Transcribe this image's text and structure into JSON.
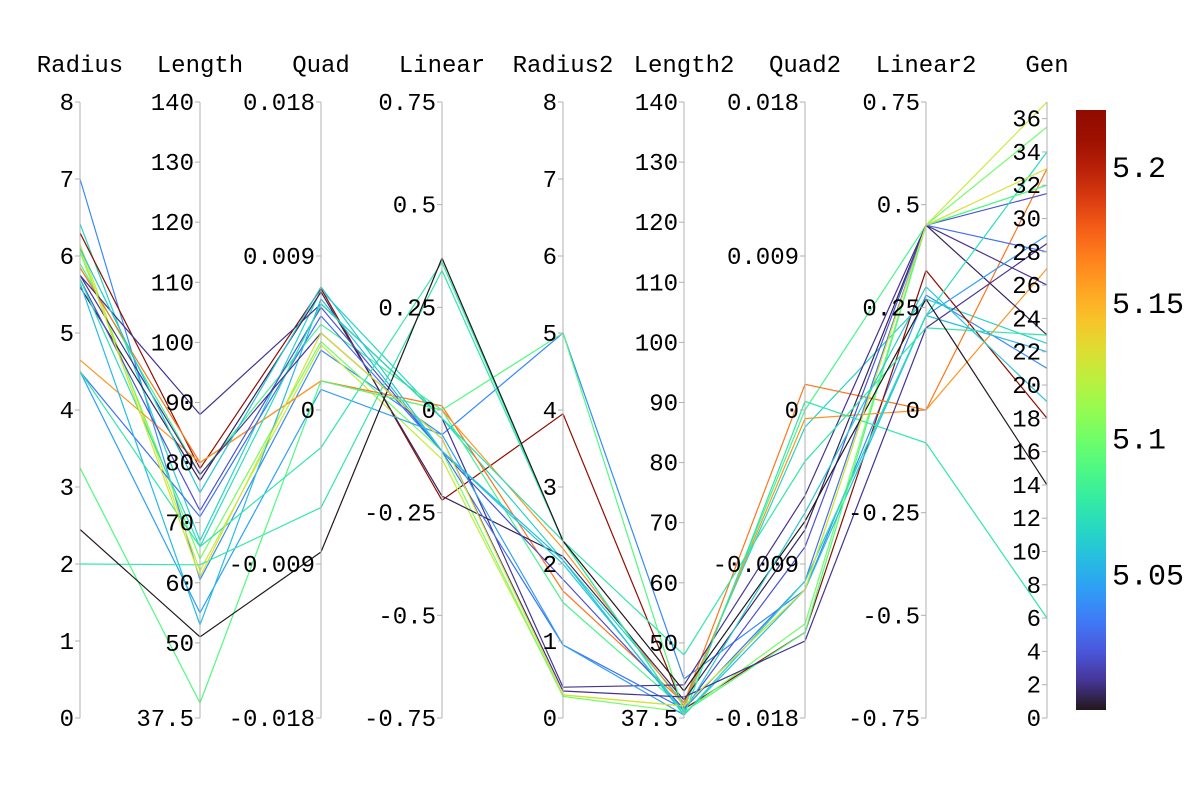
{
  "chart_data": {
    "type": "parallel_coordinates",
    "title": "",
    "axes": [
      {
        "name": "Radius",
        "range": [
          0,
          8
        ],
        "ticks": [
          "0",
          "1",
          "2",
          "3",
          "4",
          "5",
          "6",
          "7",
          "8"
        ],
        "tick_values": [
          0,
          1,
          2,
          3,
          4,
          5,
          6,
          7,
          8
        ]
      },
      {
        "name": "Length",
        "range": [
          37.5,
          140
        ],
        "ticks": [
          "37.5",
          "50",
          "60",
          "70",
          "80",
          "90",
          "100",
          "110",
          "120",
          "130",
          "140"
        ],
        "tick_values": [
          37.5,
          50,
          60,
          70,
          80,
          90,
          100,
          110,
          120,
          130,
          140
        ]
      },
      {
        "name": "Quad",
        "range": [
          -0.018,
          0.018
        ],
        "ticks": [
          "-0.018",
          "-0.009",
          "0",
          "0.009",
          "0.018"
        ],
        "tick_values": [
          -0.018,
          -0.009,
          0,
          0.009,
          0.018
        ]
      },
      {
        "name": "Linear",
        "range": [
          -0.75,
          0.75
        ],
        "ticks": [
          "-0.75",
          "-0.5",
          "-0.25",
          "0",
          "0.25",
          "0.5",
          "0.75"
        ],
        "tick_values": [
          -0.75,
          -0.5,
          -0.25,
          0,
          0.25,
          0.5,
          0.75
        ]
      },
      {
        "name": "Radius2",
        "range": [
          0,
          8
        ],
        "ticks": [
          "0",
          "1",
          "2",
          "3",
          "4",
          "5",
          "6",
          "7",
          "8"
        ],
        "tick_values": [
          0,
          1,
          2,
          3,
          4,
          5,
          6,
          7,
          8
        ]
      },
      {
        "name": "Length2",
        "range": [
          37.5,
          140
        ],
        "ticks": [
          "37.5",
          "50",
          "60",
          "70",
          "80",
          "90",
          "100",
          "110",
          "120",
          "130",
          "140"
        ],
        "tick_values": [
          37.5,
          50,
          60,
          70,
          80,
          90,
          100,
          110,
          120,
          130,
          140
        ]
      },
      {
        "name": "Quad2",
        "range": [
          -0.018,
          0.018
        ],
        "ticks": [
          "-0.018",
          "-0.009",
          "0",
          "0.009",
          "0.018"
        ],
        "tick_values": [
          -0.018,
          -0.009,
          0,
          0.009,
          0.018
        ]
      },
      {
        "name": "Linear2",
        "range": [
          -0.75,
          0.75
        ],
        "ticks": [
          "-0.75",
          "-0.5",
          "-0.25",
          "0",
          "0.25",
          "0.5",
          "0.75"
        ],
        "tick_values": [
          -0.75,
          -0.5,
          -0.25,
          0,
          0.25,
          0.5,
          0.75
        ]
      },
      {
        "name": "Gen",
        "range": [
          0,
          37
        ],
        "ticks": [
          "0",
          "2",
          "4",
          "6",
          "8",
          "10",
          "12",
          "14",
          "16",
          "18",
          "20",
          "22",
          "24",
          "26",
          "28",
          "30",
          "32",
          "34",
          "36"
        ],
        "tick_values": [
          0,
          2,
          4,
          6,
          8,
          10,
          12,
          14,
          16,
          18,
          20,
          22,
          24,
          26,
          28,
          30,
          32,
          34,
          36
        ]
      }
    ],
    "colorbar": {
      "colormap": "turbo",
      "range": [
        5.0,
        5.221
      ],
      "ticks": [
        "5.05",
        "5.1",
        "5.15",
        "5.2"
      ],
      "tick_values": [
        5.05,
        5.1,
        5.15,
        5.2
      ]
    },
    "series": [
      {
        "color_value": 5.038,
        "values": [
          7.0,
          60.5,
          0.0035,
          -0.06,
          5.0,
          44.0,
          -0.0105,
          0.28,
          21.0
        ]
      },
      {
        "color_value": 5.065,
        "values": [
          6.42,
          67.0,
          0.007,
          -0.02,
          2.05,
          40.0,
          -0.001,
          0.27,
          22.5
        ]
      },
      {
        "color_value": 5.22,
        "values": [
          6.3,
          79.0,
          0.0071,
          -0.22,
          3.95,
          39.0,
          -0.013,
          0.34,
          18.0
        ]
      },
      {
        "color_value": 5.125,
        "values": [
          6.15,
          62.0,
          0.0038,
          -0.12,
          0.3,
          39.5,
          -0.0105,
          0.45,
          37.0
        ]
      },
      {
        "color_value": 5.1,
        "values": [
          6.05,
          64.0,
          0.004,
          -0.1,
          0.28,
          38.5,
          -0.0125,
          0.45,
          35.5
        ]
      },
      {
        "color_value": 5.085,
        "values": [
          5.9,
          78.0,
          0.005,
          0.0,
          1.5,
          39.0,
          0.0,
          0.45,
          32.0
        ]
      },
      {
        "color_value": 5.17,
        "values": [
          5.85,
          80.0,
          0.0017,
          0.01,
          1.65,
          40.0,
          0.0015,
          0.0,
          33.0
        ]
      },
      {
        "color_value": 5.16,
        "values": [
          4.65,
          80.0,
          0.0017,
          0.0,
          2.2,
          39.5,
          -0.0005,
          0.0,
          27.0
        ]
      },
      {
        "color_value": 5.01,
        "values": [
          5.75,
          88.0,
          0.0062,
          -0.02,
          0.4,
          43.0,
          -0.005,
          0.45,
          26.0
        ]
      },
      {
        "color_value": 5.005,
        "values": [
          5.6,
          77.0,
          0.0069,
          -0.21,
          2.1,
          40.5,
          -0.007,
          0.45,
          23.0
        ]
      },
      {
        "color_value": 5.02,
        "values": [
          5.7,
          72.0,
          0.006,
          -0.1,
          1.8,
          39.0,
          -0.008,
          0.45,
          31.5
        ]
      },
      {
        "color_value": 5.03,
        "values": [
          4.5,
          71.0,
          0.0055,
          -0.1,
          0.95,
          39.0,
          -0.01,
          0.45,
          28.0
        ]
      },
      {
        "color_value": 5.045,
        "values": [
          4.5,
          55.0,
          0.0012,
          -0.06,
          0.95,
          38.0,
          -0.01,
          0.23,
          29.0
        ]
      },
      {
        "color_value": 5.055,
        "values": [
          5.65,
          53.0,
          0.0065,
          -0.1,
          2.05,
          38.0,
          -0.0105,
          0.23,
          22.0
        ]
      },
      {
        "color_value": 5.07,
        "values": [
          5.7,
          66.0,
          0.0062,
          -0.02,
          2.3,
          38.0,
          -0.01,
          0.23,
          34.0
        ]
      },
      {
        "color_value": 5.075,
        "values": [
          2.0,
          63.0,
          -0.0057,
          0.34,
          2.3,
          48.0,
          -0.003,
          0.2,
          23.0
        ]
      },
      {
        "color_value": 5.09,
        "values": [
          3.25,
          40.0,
          0.0017,
          0.0,
          5.0,
          38.5,
          -0.013,
          0.45,
          32.0
        ]
      },
      {
        "color_value": 5.075,
        "values": [
          4.5,
          66.0,
          -0.0022,
          0.36,
          2.3,
          38.0,
          0.0005,
          -0.08,
          6.0
        ]
      },
      {
        "color_value": 5.0,
        "values": [
          2.45,
          51.0,
          -0.0083,
          0.37,
          2.3,
          42.0,
          -0.0065,
          0.27,
          14.0
        ]
      },
      {
        "color_value": 5.01,
        "values": [
          5.75,
          78.0,
          0.0045,
          -0.07,
          0.35,
          41.0,
          -0.0135,
          0.2,
          28.5
        ]
      },
      {
        "color_value": 5.13,
        "values": [
          6.1,
          61.0,
          0.0045,
          -0.07,
          0.3,
          39.5,
          -0.0105,
          0.45,
          33.0
        ]
      },
      {
        "color_value": 5.06,
        "values": [
          6.1,
          75.0,
          0.0072,
          -0.1,
          2.0,
          38.5,
          -0.006,
          0.3,
          19.0
        ]
      }
    ]
  }
}
